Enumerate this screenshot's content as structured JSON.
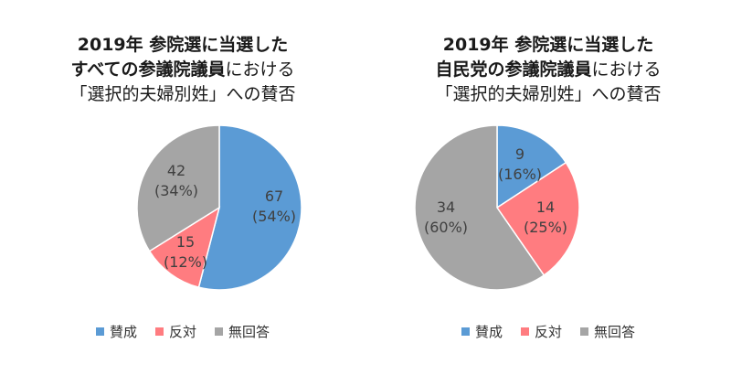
{
  "chart_data": [
    {
      "type": "pie",
      "title_lines": [
        [
          {
            "text": "2019年 参院選に当選した",
            "bold": true
          }
        ],
        [
          {
            "text": "すべての参議院議員",
            "bold": true
          },
          {
            "text": "における",
            "bold": false
          }
        ],
        [
          {
            "text": "「選択的夫婦別姓」への賛否",
            "bold": false
          }
        ]
      ],
      "slices": [
        {
          "label": "賛成",
          "value": 67,
          "pct_label": "(54%)",
          "color": "#5b9bd5"
        },
        {
          "label": "反対",
          "value": 15,
          "pct_label": "(12%)",
          "color": "#ff7c80"
        },
        {
          "label": "無回答",
          "value": 42,
          "pct_label": "(34%)",
          "color": "#a5a5a5"
        }
      ],
      "legend_position": "bottom"
    },
    {
      "type": "pie",
      "title_lines": [
        [
          {
            "text": "2019年 参院選に当選した",
            "bold": true
          }
        ],
        [
          {
            "text": "自民党の参議院議員",
            "bold": true
          },
          {
            "text": "における",
            "bold": false
          }
        ],
        [
          {
            "text": "「選択的夫婦別姓」への賛否",
            "bold": false
          }
        ]
      ],
      "slices": [
        {
          "label": "賛成",
          "value": 9,
          "pct_label": "(16%)",
          "color": "#5b9bd5"
        },
        {
          "label": "反対",
          "value": 14,
          "pct_label": "(25%)",
          "color": "#ff7c80"
        },
        {
          "label": "無回答",
          "value": 34,
          "pct_label": "(60%)",
          "color": "#a5a5a5"
        }
      ],
      "legend_position": "bottom"
    }
  ]
}
